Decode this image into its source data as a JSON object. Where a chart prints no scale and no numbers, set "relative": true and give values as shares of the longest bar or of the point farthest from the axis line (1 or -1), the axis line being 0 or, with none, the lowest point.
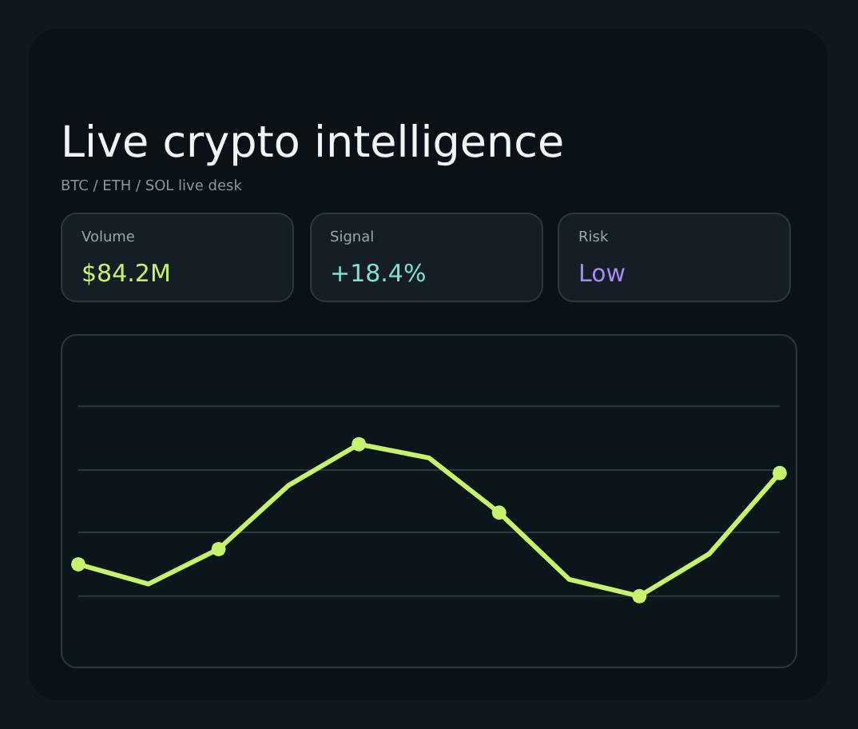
{
  "chart_data": {
    "type": "line",
    "title": "Live crypto intelligence",
    "subtitle": "BTC / ETH / SOL live desk",
    "annotations": [
      "Volume",
      "$84.2M",
      "Signal",
      "+18.4%",
      "Risk",
      "Low"
    ],
    "categories": [
      null,
      null,
      null,
      null,
      null,
      null,
      null,
      null,
      null,
      null,
      null
    ],
    "relative": true,
    "marker": "circle",
    "line_style": "solid",
    "ref_lines": [
      {
        "axis": "y",
        "value": 0,
        "color": "#2a3a40"
      },
      {
        "axis": "y",
        "value": 0.42,
        "color": "#2a3a40"
      },
      {
        "axis": "y",
        "value": 0.83,
        "color": "#2a3a40"
      },
      {
        "axis": "y",
        "value": 1.25,
        "color": "#2a3a40"
      }
    ],
    "series": [
      {
        "color": "#c6f36b",
        "values": [
          0.21,
          0.08,
          0.31,
          0.73,
          1,
          0.91,
          0.55,
          0.11,
          0,
          0.28,
          0.81
        ]
      }
    ]
  }
}
